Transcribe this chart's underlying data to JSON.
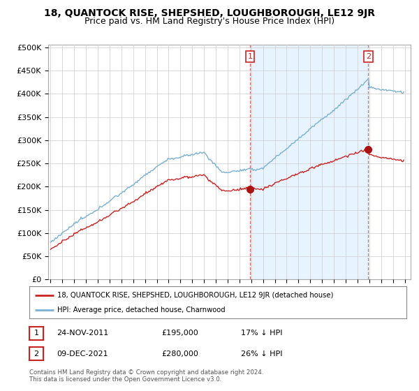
{
  "title": "18, QUANTOCK RISE, SHEPSHED, LOUGHBOROUGH, LE12 9JR",
  "subtitle": "Price paid vs. HM Land Registry's House Price Index (HPI)",
  "ylim": [
    0,
    500000
  ],
  "yticks": [
    0,
    50000,
    100000,
    150000,
    200000,
    250000,
    300000,
    350000,
    400000,
    450000,
    500000
  ],
  "ytick_labels": [
    "£0",
    "£50K",
    "£100K",
    "£150K",
    "£200K",
    "£250K",
    "£300K",
    "£350K",
    "£400K",
    "£450K",
    "£500K"
  ],
  "hpi_color": "#7ab0d4",
  "price_color": "#cc2222",
  "marker_color": "#aa1111",
  "bg_color": "#ffffff",
  "grid_color": "#cccccc",
  "shade_color": "#ddeeff",
  "sale1_year": 2011.9,
  "sale1_price": 195000,
  "sale2_year": 2021.92,
  "sale2_price": 280000,
  "legend_line1": "18, QUANTOCK RISE, SHEPSHED, LOUGHBOROUGH, LE12 9JR (detached house)",
  "legend_line2": "HPI: Average price, detached house, Charnwood",
  "table_row1": [
    "1",
    "24-NOV-2011",
    "£195,000",
    "17% ↓ HPI"
  ],
  "table_row2": [
    "2",
    "09-DEC-2021",
    "£280,000",
    "26% ↓ HPI"
  ],
  "footer": "Contains HM Land Registry data © Crown copyright and database right 2024.\nThis data is licensed under the Open Government Licence v3.0.",
  "title_fontsize": 10,
  "subtitle_fontsize": 9
}
